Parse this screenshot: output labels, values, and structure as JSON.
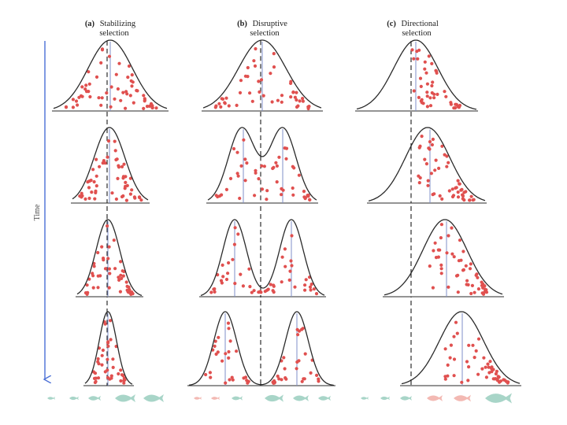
{
  "columns": [
    {
      "id": "a",
      "letter": "(a)",
      "line1": "Stabilizing",
      "line2": "selection"
    },
    {
      "id": "b",
      "letter": "(b)",
      "line1": "Disruptive",
      "line2": "selection"
    },
    {
      "id": "c",
      "letter": "(c)",
      "line1": "Directional",
      "line2": "selection"
    }
  ],
  "time_axis": {
    "label": "Time"
  },
  "colors": {
    "curve": "#2a2a2a",
    "dots": "#e0504f",
    "mean_line": "#7f8fc8",
    "time_arrow": "#4a6fd6",
    "fish": "#9fd0c2",
    "fish_pink": "#f2b1ab"
  }
}
